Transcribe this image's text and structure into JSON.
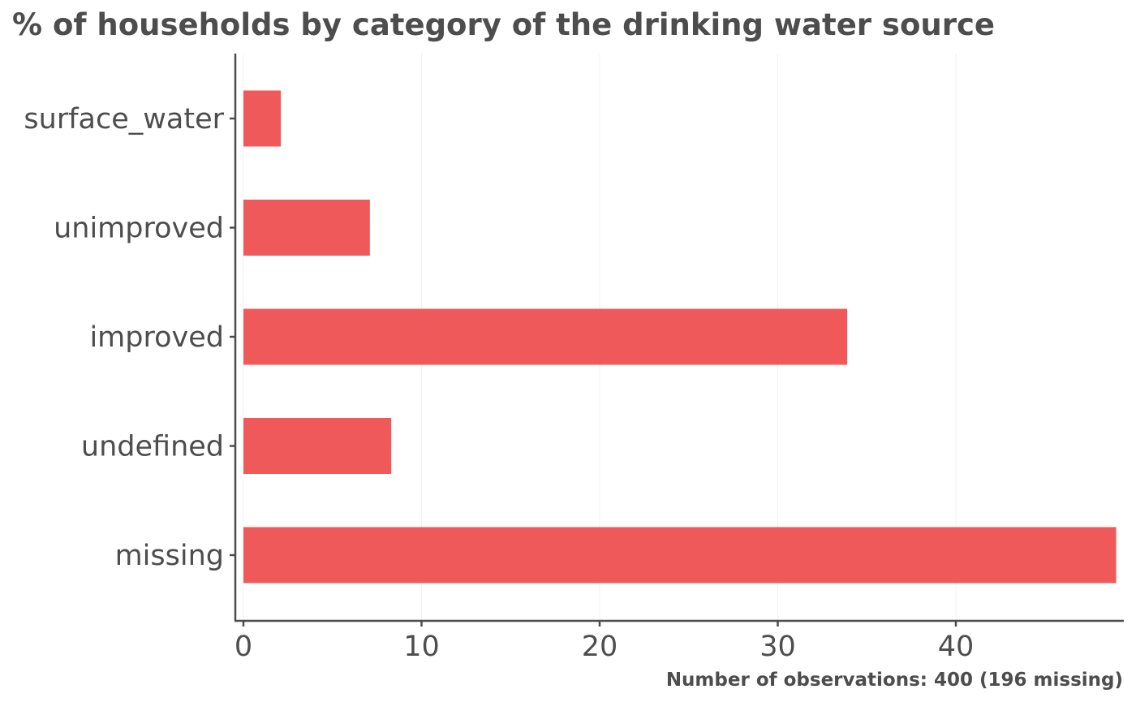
{
  "chart_data": {
    "type": "bar",
    "orientation": "horizontal",
    "title": "% of households by category of the drinking water source",
    "caption": "Number of observations: 400 (196 missing)",
    "xlabel": "",
    "ylabel": "",
    "categories": [
      "surface_water",
      "unimproved",
      "improved",
      "undefined",
      "missing"
    ],
    "values": [
      2.1,
      7.1,
      33.9,
      8.3,
      49.0
    ],
    "xlim": [
      0,
      49
    ],
    "xticks": [
      0,
      10,
      20,
      30,
      40
    ],
    "bar_color": "#EF5959",
    "grid": false,
    "legend": "none"
  }
}
